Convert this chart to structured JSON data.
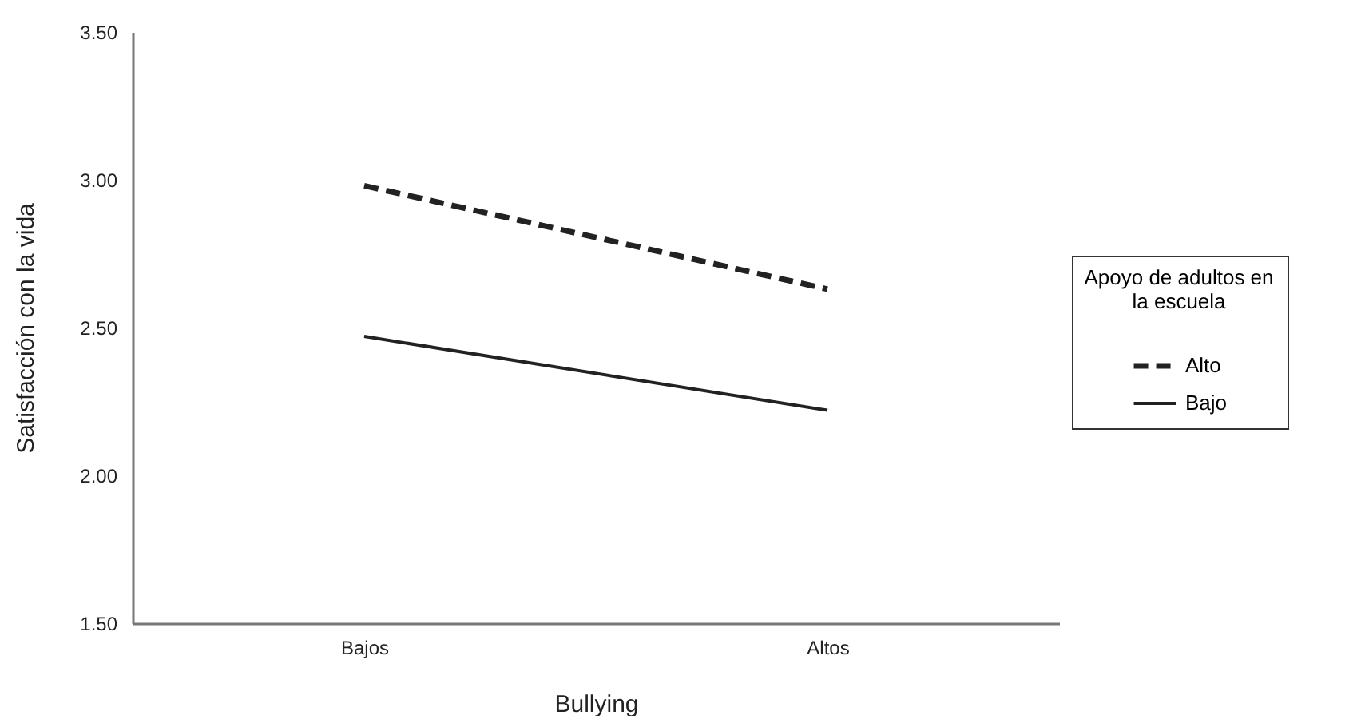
{
  "chart_data": {
    "type": "line",
    "xlabel": "Bullying",
    "ylabel": "Satisfacción con la vida",
    "legend_title": "Apoyo de adultos en\nla escuela",
    "categories": [
      "Bajos",
      "Altos"
    ],
    "series": [
      {
        "name": "Alto",
        "color": "#222222",
        "line_style": "dashed",
        "values": [
          2.98,
          2.63
        ]
      },
      {
        "name": "Bajo",
        "color": "#222222",
        "line_style": "solid",
        "values": [
          2.47,
          2.22
        ]
      }
    ],
    "ylim": [
      1.5,
      3.5
    ],
    "yticks": [
      {
        "value": 1.5,
        "label": "1.50"
      },
      {
        "value": 2,
        "label": "2.00"
      },
      {
        "value": 2.5,
        "label": "2.50"
      },
      {
        "value": 3,
        "label": "3.00"
      },
      {
        "value": 3.5,
        "label": "3.50"
      }
    ],
    "grid": false,
    "legend": "right",
    "marker": "none"
  }
}
